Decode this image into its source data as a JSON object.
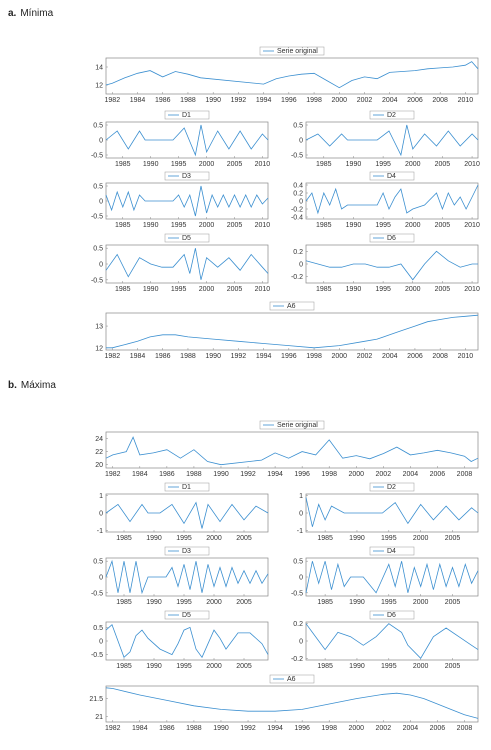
{
  "panels": [
    {
      "letter": "a.",
      "title": "Mínima"
    },
    {
      "letter": "b.",
      "title": "Máxima"
    }
  ],
  "colors": {
    "series": "#3b8fd0",
    "frame": "#888888"
  },
  "chart_data": [
    {
      "panel": "a",
      "type": "line",
      "legend": "Serie original",
      "xlim": [
        1981.5,
        2011
      ],
      "ylim": [
        11,
        15
      ],
      "yticks": [
        12,
        14
      ],
      "xticks": [
        1982,
        1984,
        1986,
        1988,
        1990,
        1992,
        1994,
        1996,
        1998,
        2000,
        2002,
        2004,
        2006,
        2008,
        2010
      ],
      "x": [
        1981.5,
        1982,
        1983,
        1984,
        1985,
        1986,
        1987,
        1988,
        1989,
        1994,
        1995,
        1996,
        1997,
        1998,
        1999,
        2000,
        2001,
        2002,
        2003,
        2004,
        2005,
        2006,
        2007,
        2008,
        2009,
        2010,
        2010.5,
        2011
      ],
      "y": [
        12.0,
        12.2,
        12.8,
        13.3,
        13.6,
        12.9,
        13.5,
        13.2,
        12.8,
        12.1,
        12.7,
        13.0,
        13.2,
        13.3,
        12.5,
        11.7,
        12.5,
        12.9,
        12.7,
        13.4,
        13.5,
        13.6,
        13.8,
        13.9,
        14.0,
        14.2,
        14.6,
        13.8
      ]
    },
    {
      "panel": "a",
      "type": "line",
      "legend": "D1",
      "xlim": [
        1982,
        2011
      ],
      "ylim": [
        -0.6,
        0.6
      ],
      "yticks": [
        -0.5,
        0,
        0.5
      ],
      "xticks": [
        1985,
        1990,
        1995,
        2000,
        2005,
        2010
      ],
      "x": [
        1982,
        1984,
        1986,
        1988,
        1989,
        1994,
        1996,
        1998,
        1999,
        2000,
        2002,
        2004,
        2006,
        2008,
        2010,
        2011
      ],
      "y": [
        0,
        0.3,
        -0.3,
        0.3,
        0,
        0,
        0.4,
        -0.5,
        0.5,
        -0.4,
        0.3,
        -0.3,
        0.3,
        -0.3,
        0.2,
        0
      ]
    },
    {
      "panel": "a",
      "type": "line",
      "legend": "D2",
      "xlim": [
        1982,
        2011
      ],
      "ylim": [
        -0.6,
        0.6
      ],
      "yticks": [
        -0.5,
        0,
        0.5
      ],
      "xticks": [
        1985,
        1990,
        1995,
        2000,
        2005,
        2010
      ],
      "x": [
        1982,
        1984,
        1986,
        1988,
        1989,
        1994,
        1996,
        1998,
        1999,
        2000,
        2002,
        2004,
        2006,
        2008,
        2010,
        2011
      ],
      "y": [
        0,
        0.2,
        -0.2,
        0.2,
        0,
        0,
        0.3,
        -0.5,
        0.5,
        -0.3,
        0.2,
        -0.2,
        0.3,
        -0.2,
        0.2,
        0
      ]
    },
    {
      "panel": "a",
      "type": "line",
      "legend": "D3",
      "xlim": [
        1982,
        2011
      ],
      "ylim": [
        -0.6,
        0.6
      ],
      "yticks": [
        -0.5,
        0,
        0.5
      ],
      "xticks": [
        1985,
        1990,
        1995,
        2000,
        2005,
        2010
      ],
      "x": [
        1982,
        1983,
        1984,
        1985,
        1986,
        1987,
        1988,
        1989,
        1994,
        1995,
        1996,
        1997,
        1998,
        1999,
        2000,
        2001,
        2002,
        2003,
        2004,
        2005,
        2006,
        2007,
        2008,
        2009,
        2010,
        2011
      ],
      "y": [
        0.2,
        -0.3,
        0.3,
        -0.2,
        0.3,
        -0.3,
        0.2,
        0,
        0,
        0.2,
        -0.2,
        0.2,
        -0.5,
        0.5,
        -0.4,
        0.2,
        -0.2,
        0.2,
        -0.2,
        0.2,
        -0.2,
        0.2,
        -0.2,
        0.2,
        -0.1,
        0.1
      ]
    },
    {
      "panel": "a",
      "type": "line",
      "legend": "D4",
      "xlim": [
        1982,
        2011
      ],
      "ylim": [
        -0.45,
        0.45
      ],
      "yticks": [
        -0.4,
        -0.2,
        0,
        0.2,
        0.4
      ],
      "xticks": [
        1985,
        1990,
        1995,
        2000,
        2005,
        2010
      ],
      "x": [
        1982,
        1983,
        1984,
        1985,
        1986,
        1987,
        1988,
        1989,
        1994,
        1995,
        1996,
        1997,
        1998,
        1999,
        2000,
        2002,
        2004,
        2005,
        2006,
        2007,
        2008,
        2009,
        2010,
        2011
      ],
      "y": [
        0,
        0.2,
        -0.3,
        0.2,
        -0.1,
        0.3,
        -0.2,
        -0.1,
        -0.1,
        0.2,
        -0.2,
        0.1,
        0.3,
        -0.3,
        -0.2,
        -0.1,
        0.2,
        -0.2,
        0.2,
        -0.1,
        0.1,
        -0.2,
        0.1,
        0.4
      ]
    },
    {
      "panel": "a",
      "type": "line",
      "legend": "D5",
      "xlim": [
        1982,
        2011
      ],
      "ylim": [
        -0.6,
        0.6
      ],
      "yticks": [
        -0.5,
        0,
        0.5
      ],
      "xticks": [
        1985,
        1990,
        1995,
        2000,
        2005,
        2010
      ],
      "x": [
        1982,
        1984,
        1986,
        1988,
        1990,
        1992,
        1994,
        1996,
        1997,
        1998,
        1999,
        2000,
        2002,
        2004,
        2006,
        2008,
        2010,
        2011
      ],
      "y": [
        -0.2,
        0.3,
        -0.4,
        0.2,
        0,
        -0.1,
        -0.1,
        0.3,
        -0.3,
        0.5,
        -0.5,
        0.2,
        -0.1,
        0.2,
        -0.2,
        0.3,
        -0.1,
        -0.3
      ]
    },
    {
      "panel": "a",
      "type": "line",
      "legend": "D6",
      "xlim": [
        1982,
        2011
      ],
      "ylim": [
        -0.3,
        0.3
      ],
      "yticks": [
        -0.2,
        0,
        0.2
      ],
      "xticks": [
        1985,
        1990,
        1995,
        2000,
        2005,
        2010
      ],
      "x": [
        1982,
        1984,
        1986,
        1988,
        1990,
        1992,
        1994,
        1996,
        1998,
        2000,
        2002,
        2004,
        2006,
        2008,
        2010,
        2011
      ],
      "y": [
        0.05,
        0.0,
        -0.05,
        -0.05,
        0.0,
        0.0,
        -0.05,
        -0.05,
        0.0,
        -0.25,
        0.0,
        0.2,
        0.05,
        -0.05,
        0.0,
        0.0
      ]
    },
    {
      "panel": "a",
      "type": "line",
      "legend": "A6",
      "xlim": [
        1981.5,
        2011
      ],
      "ylim": [
        11.9,
        13.6
      ],
      "yticks": [
        12,
        13
      ],
      "xticks": [
        1982,
        1984,
        1986,
        1988,
        1990,
        1992,
        1994,
        1996,
        1998,
        2000,
        2002,
        2004,
        2006,
        2008,
        2010
      ],
      "x": [
        1981.5,
        1982,
        1983,
        1984,
        1985,
        1986,
        1987,
        1988,
        1990,
        1992,
        1994,
        1996,
        1998,
        2000,
        2002,
        2003,
        2004,
        2005,
        2006,
        2007,
        2008,
        2009,
        2010,
        2011
      ],
      "y": [
        12.0,
        12.0,
        12.15,
        12.3,
        12.5,
        12.6,
        12.6,
        12.5,
        12.4,
        12.3,
        12.2,
        12.1,
        12.0,
        12.1,
        12.3,
        12.4,
        12.6,
        12.8,
        13.0,
        13.2,
        13.3,
        13.4,
        13.45,
        13.5
      ]
    },
    {
      "panel": "b",
      "type": "line",
      "legend": "Serie original",
      "xlim": [
        1981.5,
        2009
      ],
      "ylim": [
        19.5,
        25
      ],
      "yticks": [
        20,
        22,
        24
      ],
      "xticks": [
        1982,
        1984,
        1986,
        1988,
        1990,
        1992,
        1994,
        1996,
        1998,
        2000,
        2002,
        2004,
        2006,
        2008
      ],
      "x": [
        1981.5,
        1982,
        1983,
        1983.5,
        1984,
        1985,
        1986,
        1987,
        1988,
        1989,
        1990,
        1993,
        1994,
        1995,
        1996,
        1997,
        1998,
        1999,
        2000,
        2001,
        2002,
        2003,
        2004,
        2005,
        2006,
        2007,
        2008,
        2008.5,
        2009
      ],
      "y": [
        21.0,
        21.5,
        22.0,
        24.2,
        21.5,
        21.8,
        22.3,
        21.0,
        22.3,
        20.5,
        20.0,
        20.7,
        21.8,
        21.0,
        22.0,
        21.5,
        23.8,
        21.0,
        21.4,
        20.9,
        21.7,
        22.7,
        21.5,
        21.8,
        22.2,
        21.8,
        21.3,
        20.5,
        21.0
      ]
    },
    {
      "panel": "b",
      "type": "line",
      "legend": "D1",
      "xlim": [
        1982,
        2009
      ],
      "ylim": [
        -1.1,
        1.1
      ],
      "yticks": [
        -1,
        0,
        1
      ],
      "xticks": [
        1985,
        1990,
        1995,
        2000,
        2005
      ],
      "x": [
        1982,
        1984,
        1986,
        1988,
        1989,
        1991,
        1993,
        1995,
        1997,
        1998,
        1999,
        2001,
        2003,
        2005,
        2007,
        2009
      ],
      "y": [
        0,
        0.5,
        -0.5,
        0.5,
        0,
        0,
        0.5,
        -0.6,
        0.6,
        -0.9,
        0.5,
        -0.5,
        0.5,
        -0.4,
        0.4,
        0
      ]
    },
    {
      "panel": "b",
      "type": "line",
      "legend": "D2",
      "xlim": [
        1982,
        2009
      ],
      "ylim": [
        -1.1,
        1.1
      ],
      "yticks": [
        -1,
        0,
        1
      ],
      "xticks": [
        1985,
        1990,
        1995,
        2000,
        2005
      ],
      "x": [
        1982,
        1983,
        1984,
        1985,
        1986,
        1988,
        1990,
        1992,
        1994,
        1996,
        1998,
        2000,
        2002,
        2004,
        2006,
        2008,
        2009
      ],
      "y": [
        0.9,
        -0.8,
        0.5,
        -0.4,
        0.4,
        0,
        0,
        0,
        0,
        0.6,
        -0.6,
        0.5,
        -0.4,
        0.4,
        -0.4,
        0.3,
        0
      ]
    },
    {
      "panel": "b",
      "type": "line",
      "legend": "D3",
      "xlim": [
        1982,
        2009
      ],
      "ylim": [
        -0.6,
        0.6
      ],
      "yticks": [
        -0.5,
        0,
        0.5
      ],
      "xticks": [
        1985,
        1990,
        1995,
        2000,
        2005
      ],
      "x": [
        1982,
        1983,
        1984,
        1985,
        1986,
        1987,
        1988,
        1989,
        1992,
        1993,
        1994,
        1995,
        1996,
        1997,
        1998,
        1999,
        2000,
        2001,
        2002,
        2003,
        2004,
        2005,
        2006,
        2007,
        2008,
        2009
      ],
      "y": [
        0,
        0.5,
        -0.5,
        0.5,
        -0.5,
        0.5,
        -0.5,
        0,
        0,
        0.3,
        -0.3,
        0.4,
        -0.4,
        0.5,
        -0.5,
        0.4,
        -0.3,
        0.3,
        -0.3,
        0.3,
        -0.2,
        0.2,
        -0.2,
        0.2,
        -0.2,
        0.1
      ]
    },
    {
      "panel": "b",
      "type": "line",
      "legend": "D4",
      "xlim": [
        1982,
        2009
      ],
      "ylim": [
        -0.6,
        0.6
      ],
      "yticks": [
        -0.5,
        0,
        0.5
      ],
      "xticks": [
        1985,
        1990,
        1995,
        2000,
        2005
      ],
      "x": [
        1982,
        1983,
        1984,
        1985,
        1986,
        1987,
        1988,
        1989,
        1991,
        1993,
        1995,
        1996,
        1997,
        1998,
        1999,
        2000,
        2001,
        2002,
        2003,
        2004,
        2005,
        2006,
        2007,
        2008,
        2009
      ],
      "y": [
        -0.5,
        0.5,
        -0.2,
        0.5,
        -0.4,
        0.4,
        -0.3,
        0,
        0,
        -0.5,
        0.4,
        -0.3,
        0.5,
        -0.5,
        0.3,
        -0.3,
        0.4,
        -0.4,
        0.4,
        -0.3,
        0.3,
        -0.3,
        0.4,
        -0.2,
        0.2
      ]
    },
    {
      "panel": "b",
      "type": "line",
      "legend": "D5",
      "xlim": [
        1982,
        2009
      ],
      "ylim": [
        -0.7,
        0.7
      ],
      "yticks": [
        -0.5,
        0,
        0.5
      ],
      "xticks": [
        1985,
        1990,
        1995,
        2000,
        2005
      ],
      "x": [
        1982,
        1983,
        1984,
        1985,
        1986,
        1987,
        1988,
        1989,
        1991,
        1993,
        1994,
        1995,
        1996,
        1997,
        1998,
        1999,
        2000,
        2001,
        2002,
        2004,
        2006,
        2008,
        2009
      ],
      "y": [
        0.4,
        0.6,
        0,
        -0.6,
        -0.4,
        0.2,
        0.4,
        0.1,
        -0.3,
        -0.5,
        -0.1,
        0.4,
        0.5,
        -0.3,
        -0.6,
        -0.1,
        0.4,
        0.1,
        -0.3,
        0.3,
        0.3,
        -0.1,
        -0.5
      ]
    },
    {
      "panel": "b",
      "type": "line",
      "legend": "D6",
      "xlim": [
        1982,
        2009
      ],
      "ylim": [
        -0.22,
        0.22
      ],
      "yticks": [
        -0.2,
        0,
        0.2
      ],
      "xticks": [
        1985,
        1990,
        1995,
        2000,
        2005
      ],
      "x": [
        1982,
        1983,
        1985,
        1987,
        1989,
        1991,
        1993,
        1995,
        1997,
        1998,
        2000,
        2002,
        2004,
        2006,
        2008,
        2009
      ],
      "y": [
        0.2,
        0.1,
        -0.1,
        0.1,
        0.05,
        -0.05,
        0.05,
        0.2,
        0.1,
        -0.05,
        -0.2,
        0.05,
        0.15,
        0.05,
        -0.05,
        -0.1
      ]
    },
    {
      "panel": "b",
      "type": "line",
      "legend": "A6",
      "xlim": [
        1981.5,
        2009
      ],
      "ylim": [
        20.85,
        21.85
      ],
      "yticks": [
        21,
        21.5
      ],
      "xticks": [
        1982,
        1984,
        1986,
        1988,
        1990,
        1992,
        1994,
        1996,
        1998,
        2000,
        2002,
        2004,
        2006,
        2008
      ],
      "x": [
        1981.5,
        1982,
        1984,
        1986,
        1988,
        1990,
        1992,
        1994,
        1996,
        1998,
        2000,
        2002,
        2003,
        2004,
        2005,
        2006,
        2007,
        2008,
        2009
      ],
      "y": [
        21.8,
        21.78,
        21.6,
        21.45,
        21.3,
        21.2,
        21.15,
        21.15,
        21.2,
        21.35,
        21.5,
        21.62,
        21.65,
        21.6,
        21.5,
        21.35,
        21.2,
        21.05,
        20.95
      ]
    }
  ]
}
